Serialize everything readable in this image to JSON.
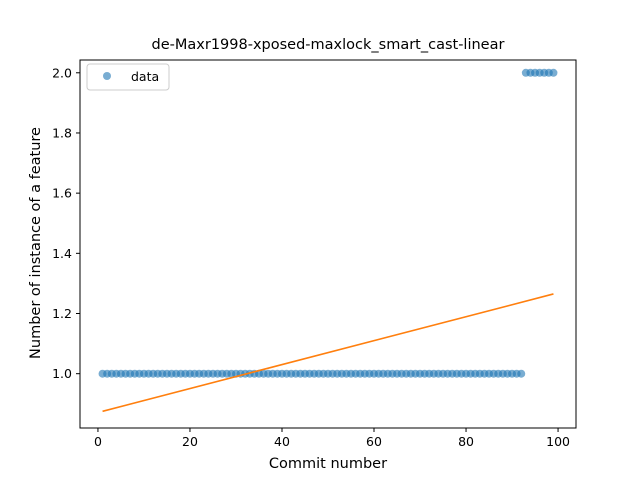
{
  "chart_data": {
    "type": "scatter",
    "title": "de-Maxr1998-xposed-maxlock_smart_cast-linear",
    "xlabel": "Commit number",
    "ylabel": "Number of instance of a feature",
    "xlim": [
      -3.9,
      103.9
    ],
    "ylim": [
      0.8195,
      2.0425
    ],
    "xticks": [
      0,
      20,
      40,
      60,
      80,
      100
    ],
    "yticks": [
      1.0,
      1.2,
      1.4,
      1.6,
      1.8,
      2.0
    ],
    "grid": false,
    "legend": {
      "placement": "top-left",
      "entries": [
        "data"
      ]
    },
    "series": [
      {
        "name": "data",
        "kind": "scatter",
        "color": "#1f77b4",
        "x_start": 1,
        "x_end": 99,
        "segments": [
          {
            "from": 1,
            "to": 92,
            "y": 1.0
          },
          {
            "from": 93,
            "to": 99,
            "y": 2.0
          }
        ]
      },
      {
        "kind": "line",
        "color": "#ff7f0e",
        "x": [
          1,
          99
        ],
        "y": [
          0.875,
          1.265
        ]
      }
    ]
  }
}
